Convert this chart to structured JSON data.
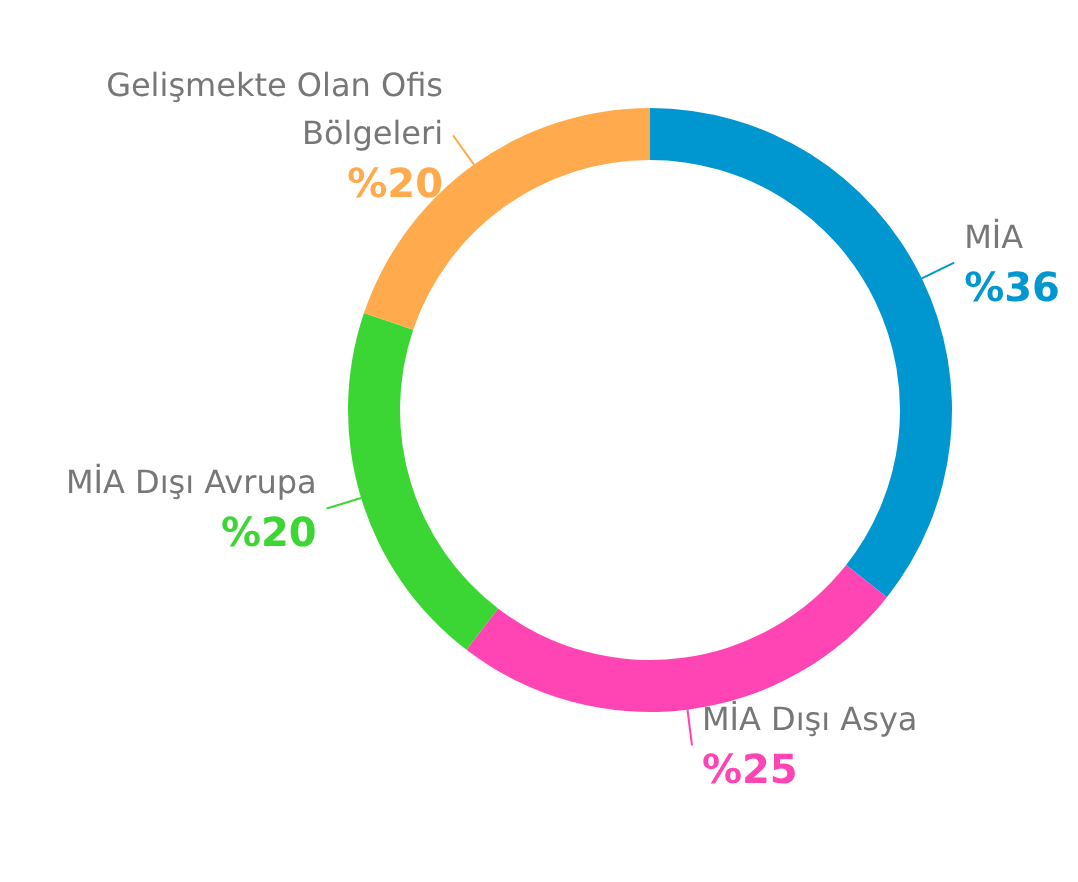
{
  "chart_data": {
    "type": "donut",
    "categories": [
      "MİA",
      "MİA Dışı Asya",
      "MİA Dışı Avrupa",
      "Gelişmekte Olan Ofis Bölgeleri"
    ],
    "values": [
      36,
      25,
      20,
      20
    ],
    "colors": [
      "#0096d0",
      "#ff44b4",
      "#3cd634",
      "#ffaa4c"
    ],
    "value_labels": [
      "%36",
      "%25",
      "%20",
      "%20"
    ],
    "legend": false
  }
}
